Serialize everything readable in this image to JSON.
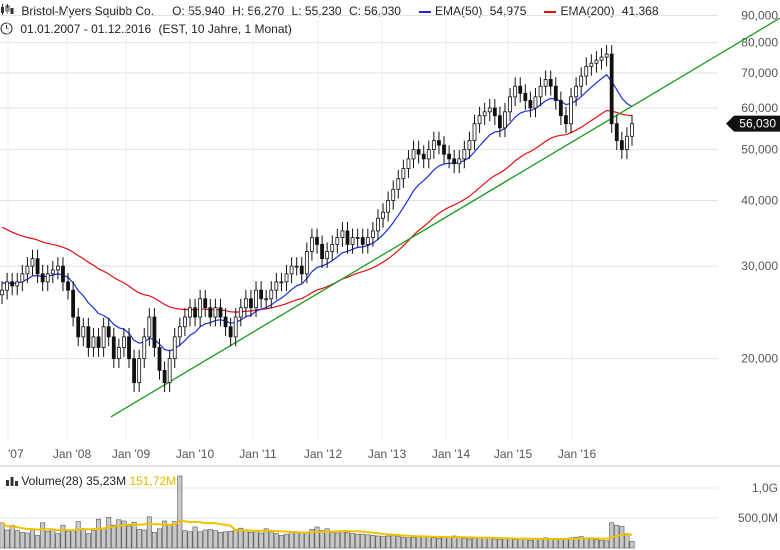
{
  "header": {
    "name": "Bristol-Myers Squibb Co.",
    "open": "O: 55,940",
    "high": "H: 56,270",
    "low": "L: 55,230",
    "close": "C: 56,030",
    "ema50_label": "EMA(50)",
    "ema50_value": "54,975",
    "ema200_label": "EMA(200)",
    "ema200_value": "41,368",
    "range": "01.01.2007 - 01.12.2016",
    "meta": "(EST, 10 Jahre, 1 Monat)"
  },
  "volume_header": {
    "label": "Volume(28)",
    "value": "35,23M",
    "avg_value": "151,72M"
  },
  "colors": {
    "ema50": "#1a2fd6",
    "ema200": "#e01010",
    "trend": "#1a9a1a",
    "avg_volume": "#f2c200",
    "candle": "#111111"
  },
  "chart_data": {
    "type": "candlestick",
    "title": "Bristol-Myers Squibb Co.",
    "y_scale": "log",
    "ylim": [
      14000,
      93000
    ],
    "y_ticks": [
      {
        "value": 90000,
        "label": "90,000"
      },
      {
        "value": 80000,
        "label": "80,000"
      },
      {
        "value": 70000,
        "label": "70,000"
      },
      {
        "value": 60000,
        "label": "60,000"
      },
      {
        "value": 50000,
        "label": "50,000"
      },
      {
        "value": 40000,
        "label": "40,000"
      },
      {
        "value": 30000,
        "label": "30,000"
      },
      {
        "value": 20000,
        "label": "20,000"
      }
    ],
    "x_ticks": [
      "'07",
      "Jan '08",
      "Jan '09",
      "Jan '10",
      "Jan '11",
      "Jan '12",
      "Jan '13",
      "Jan '14",
      "Jan '15",
      "Jan '16"
    ],
    "last_price_label": "56,030",
    "close_series_approx": [
      27,
      28,
      27.5,
      28,
      29,
      30,
      31,
      29,
      28,
      29,
      29.5,
      30,
      28,
      27,
      24,
      22,
      23,
      21,
      22,
      21,
      23,
      22,
      20,
      21,
      22,
      20,
      18,
      20,
      22,
      24,
      21,
      19,
      18,
      20,
      22,
      23,
      24,
      25,
      24,
      26,
      25,
      24,
      25,
      24,
      23,
      22,
      24,
      25,
      26,
      25,
      27,
      26,
      26,
      27,
      28,
      28,
      29,
      30,
      30,
      29,
      32,
      34,
      33,
      31,
      32,
      33,
      34,
      35,
      33,
      34,
      34,
      33,
      34,
      35,
      37,
      38,
      40,
      42,
      44,
      46,
      48,
      50,
      49,
      48,
      50,
      52,
      51,
      49,
      48,
      47,
      48,
      50,
      52,
      56,
      58,
      59,
      60,
      58,
      55,
      59,
      63,
      66,
      64,
      62,
      60,
      63,
      66,
      68,
      66,
      62,
      58,
      56,
      63,
      66,
      69,
      72,
      73,
      74,
      75,
      76,
      56,
      52,
      50,
      53,
      56
    ],
    "volume_header": "Volume(28)",
    "volume_ylim": [
      0,
      1300
    ],
    "volume_ticks": [
      {
        "value": 1000,
        "label": "1,0G"
      },
      {
        "value": 500,
        "label": "500,0M"
      }
    ],
    "volume_values_approx": [
      420,
      300,
      380,
      290,
      260,
      250,
      320,
      210,
      420,
      280,
      310,
      240,
      380,
      280,
      300,
      440,
      310,
      240,
      290,
      480,
      330,
      510,
      380,
      470,
      450,
      370,
      430,
      310,
      300,
      520,
      260,
      320,
      450,
      380,
      440,
      1200,
      290,
      270,
      350,
      270,
      300,
      310,
      290,
      260,
      270,
      280,
      310,
      330,
      300,
      260,
      280,
      250,
      320,
      270,
      240,
      210,
      230,
      260,
      270,
      250,
      270,
      310,
      350,
      290,
      320,
      260,
      250,
      270,
      260,
      240,
      230,
      230,
      220,
      210,
      200,
      190,
      200,
      210,
      190,
      180,
      170,
      180,
      190,
      200,
      180,
      170,
      160,
      190,
      180,
      200,
      170,
      160,
      150,
      160,
      170,
      180,
      170,
      150,
      140,
      160,
      150,
      140,
      150,
      160,
      130,
      150,
      160,
      170,
      150,
      140,
      150,
      160,
      170,
      180,
      190,
      160,
      150,
      140,
      130,
      120,
      420,
      380,
      360,
      240,
      110
    ],
    "series": [
      {
        "name": "EMA(50)",
        "type": "line"
      },
      {
        "name": "EMA(200)",
        "type": "line"
      },
      {
        "type": "trendline"
      },
      {
        "name": "Volume(28)",
        "type": "bar"
      }
    ]
  }
}
